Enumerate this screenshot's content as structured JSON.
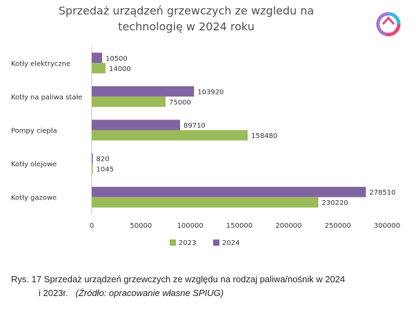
{
  "chart_data": {
    "type": "bar",
    "orientation": "horizontal",
    "title": "Sprzedaż urządzeń grzewczych ze wzgledu na technologię w 2024 roku",
    "title_lines": [
      "Sprzedaż urządzeń grzewczych ze wzgledu na",
      "technologię w 2024 roku"
    ],
    "categories": [
      "Kotły elektryczne",
      "Kotły na paliwa stałe",
      "Pompy ciepła",
      "Kotły olejowe",
      "Kotły gazowe"
    ],
    "series": [
      {
        "name": "2023",
        "color": "#9bbb59",
        "values": [
          14000,
          75000,
          158480,
          1045,
          230220
        ]
      },
      {
        "name": "2024",
        "color": "#8064a2",
        "values": [
          10500,
          103920,
          89710,
          820,
          278510
        ]
      }
    ],
    "xlim": [
      0,
      300000
    ],
    "x_ticks": [
      0,
      50000,
      100000,
      150000,
      200000,
      250000,
      300000
    ],
    "grid": false,
    "legend_placement": "bottom"
  },
  "caption": {
    "line1": "Rys. 17 Sprzedaż urządzeń grzewczych ze względu na rodzaj paliwa/nośnik w 2024",
    "line2_prefix": "i 2023r.",
    "line2_source": "(Źródło: opracowanie własne SPIUG)"
  },
  "logo": {
    "name": "spiug-logo-icon",
    "colors": [
      "#e8457a",
      "#36b6e8",
      "#9b5bc4"
    ]
  }
}
